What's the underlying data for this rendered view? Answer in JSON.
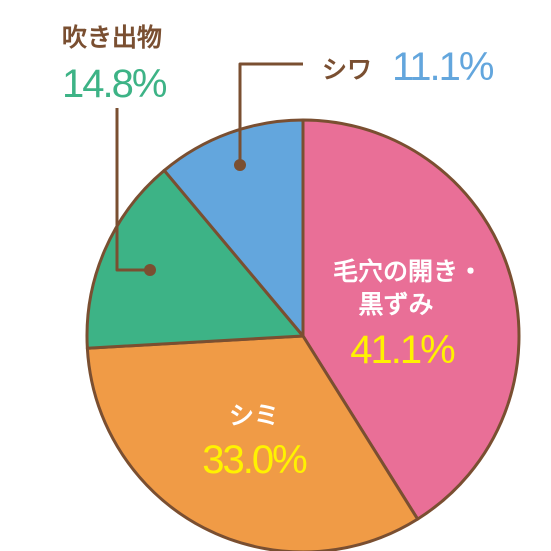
{
  "chart_data": {
    "type": "pie",
    "slices": [
      {
        "label": "毛穴の開き・黒ずみ",
        "label_lines": [
          "毛穴の開き・",
          "黒ずみ"
        ],
        "value": 41.1,
        "value_text": "41.1%",
        "color": "#e96f97"
      },
      {
        "label": "シミ",
        "label_lines": [
          "シミ"
        ],
        "value": 33.0,
        "value_text": "33.0%",
        "color": "#f09b46"
      },
      {
        "label": "吹き出物",
        "label_lines": [
          "吹き出物"
        ],
        "value": 14.8,
        "value_text": "14.8%",
        "color": "#3db386"
      },
      {
        "label": "シワ",
        "label_lines": [
          "シワ"
        ],
        "value": 11.1,
        "value_text": "11.1%",
        "color": "#63a6dd"
      }
    ],
    "start_angle_deg": 0,
    "direction": "clockwise",
    "outline_color": "#7a4f31",
    "inside_label_name_color": "#ffffff",
    "inside_value_color": "#fff200"
  }
}
